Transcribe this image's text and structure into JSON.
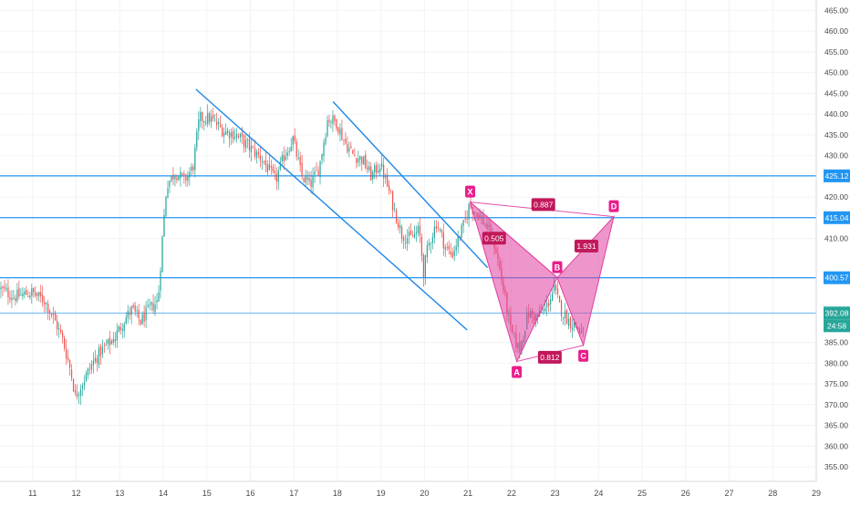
{
  "colors": {
    "up": "#26a69a",
    "down": "#ef5350",
    "trendline": "#1e88e5",
    "level": "#2196f3",
    "pattern_fill": "#e040a0",
    "pattern_stroke": "#c2185b",
    "pattern_label": "#e91e8c",
    "last_price_bg": "#26a69a",
    "axis_text": "#4a4a4a",
    "grid": "#f0f3f6"
  },
  "chart_data": {
    "type": "candlestick",
    "title": "",
    "xlabel": "",
    "ylabel": "",
    "xlim": [
      10.25,
      29.0
    ],
    "ylim": [
      351.5,
      467.5
    ],
    "x_ticks": [
      {
        "value": 11,
        "label": "11"
      },
      {
        "value": 12,
        "label": "12"
      },
      {
        "value": 13,
        "label": "13"
      },
      {
        "value": 14,
        "label": "14"
      },
      {
        "value": 15,
        "label": "15"
      },
      {
        "value": 16,
        "label": "16"
      },
      {
        "value": 17,
        "label": "17"
      },
      {
        "value": 18,
        "label": "18"
      },
      {
        "value": 19,
        "label": "19"
      },
      {
        "value": 20,
        "label": "20"
      },
      {
        "value": 21,
        "label": "21"
      },
      {
        "value": 22,
        "label": "22"
      },
      {
        "value": 23,
        "label": "23"
      },
      {
        "value": 24,
        "label": "24"
      },
      {
        "value": 25,
        "label": "25"
      },
      {
        "value": 26,
        "label": "26"
      },
      {
        "value": 27,
        "label": "27"
      },
      {
        "value": 28,
        "label": "28"
      },
      {
        "value": 29,
        "label": "29"
      }
    ],
    "y_ticks": [
      {
        "value": 355,
        "label": "355.00"
      },
      {
        "value": 360,
        "label": "360.00"
      },
      {
        "value": 365,
        "label": "365.00"
      },
      {
        "value": 370,
        "label": "370.00"
      },
      {
        "value": 375,
        "label": "375.00"
      },
      {
        "value": 380,
        "label": "380.00"
      },
      {
        "value": 385,
        "label": "385.00"
      },
      {
        "value": 410,
        "label": "410.00"
      },
      {
        "value": 420,
        "label": "420.00"
      },
      {
        "value": 430,
        "label": "430.00"
      },
      {
        "value": 435,
        "label": "435.00"
      },
      {
        "value": 440,
        "label": "440.00"
      },
      {
        "value": 445,
        "label": "445.00"
      },
      {
        "value": 450,
        "label": "450.00"
      },
      {
        "value": 455,
        "label": "455.00"
      },
      {
        "value": 460,
        "label": "460.00"
      },
      {
        "value": 465,
        "label": "465.00"
      }
    ],
    "price_path": [
      [
        10.25,
        398
      ],
      [
        10.6,
        396
      ],
      [
        11.0,
        397
      ],
      [
        11.3,
        395
      ],
      [
        11.5,
        391
      ],
      [
        11.7,
        386
      ],
      [
        11.9,
        378
      ],
      [
        12.0,
        372
      ],
      [
        12.2,
        376
      ],
      [
        12.4,
        380
      ],
      [
        12.6,
        383
      ],
      [
        12.9,
        386
      ],
      [
        13.1,
        390
      ],
      [
        13.3,
        393
      ],
      [
        13.5,
        390
      ],
      [
        13.7,
        393
      ],
      [
        13.9,
        395
      ],
      [
        14.0,
        410
      ],
      [
        14.1,
        423
      ],
      [
        14.3,
        426
      ],
      [
        14.5,
        424
      ],
      [
        14.7,
        427
      ],
      [
        14.85,
        439
      ],
      [
        15.1,
        439
      ],
      [
        15.4,
        436
      ],
      [
        15.7,
        435
      ],
      [
        16.0,
        432
      ],
      [
        16.3,
        429
      ],
      [
        16.6,
        424
      ],
      [
        16.8,
        430
      ],
      [
        17.0,
        434
      ],
      [
        17.2,
        425
      ],
      [
        17.4,
        423
      ],
      [
        17.6,
        427
      ],
      [
        17.8,
        439
      ],
      [
        18.0,
        438
      ],
      [
        18.2,
        433
      ],
      [
        18.4,
        430
      ],
      [
        18.6,
        429
      ],
      [
        18.8,
        425
      ],
      [
        19.0,
        428
      ],
      [
        19.1,
        425
      ],
      [
        19.3,
        418
      ],
      [
        19.5,
        411
      ],
      [
        19.7,
        410
      ],
      [
        19.9,
        412
      ],
      [
        20.0,
        402
      ],
      [
        20.1,
        408
      ],
      [
        20.3,
        414
      ],
      [
        20.5,
        408
      ],
      [
        20.65,
        406
      ],
      [
        20.8,
        410
      ],
      [
        20.95,
        414
      ],
      [
        21.05,
        418
      ],
      [
        21.25,
        416
      ],
      [
        21.45,
        413
      ],
      [
        21.65,
        408
      ],
      [
        21.85,
        397
      ],
      [
        22.0,
        388
      ],
      [
        22.2,
        383
      ],
      [
        22.4,
        392
      ],
      [
        22.6,
        391
      ],
      [
        22.8,
        393
      ],
      [
        23.0,
        398
      ],
      [
        23.15,
        393
      ],
      [
        23.35,
        390
      ],
      [
        23.5,
        389
      ],
      [
        23.65,
        387
      ]
    ],
    "candles_per_day": 24,
    "levels": [
      {
        "price": 425.12,
        "label": "425.12"
      },
      {
        "price": 415.04,
        "label": "415.04"
      },
      {
        "price": 400.57,
        "label": "400.57"
      }
    ],
    "last_price": {
      "price": 392.08,
      "label": "392.08",
      "countdown": "24:58"
    },
    "trendlines": [
      {
        "from": [
          14.75,
          446
        ],
        "to": [
          20.98,
          388
        ]
      },
      {
        "from": [
          17.9,
          443
        ],
        "to": [
          21.45,
          403
        ]
      }
    ],
    "harmonic_pattern": {
      "points": [
        {
          "name": "X",
          "x": 21.05,
          "y": 418.8
        },
        {
          "name": "A",
          "x": 22.12,
          "y": 380.4
        },
        {
          "name": "B",
          "x": 23.05,
          "y": 400.6
        },
        {
          "name": "C",
          "x": 23.65,
          "y": 384.3
        },
        {
          "name": "D",
          "x": 24.35,
          "y": 415.3
        }
      ],
      "ratios": [
        {
          "label": "0.505",
          "x": 21.6,
          "y": 410.1
        },
        {
          "label": "0.887",
          "x": 22.73,
          "y": 418.2
        },
        {
          "label": "1.931",
          "x": 23.72,
          "y": 408.2
        },
        {
          "label": "0.812",
          "x": 22.88,
          "y": 381.4
        }
      ]
    }
  }
}
